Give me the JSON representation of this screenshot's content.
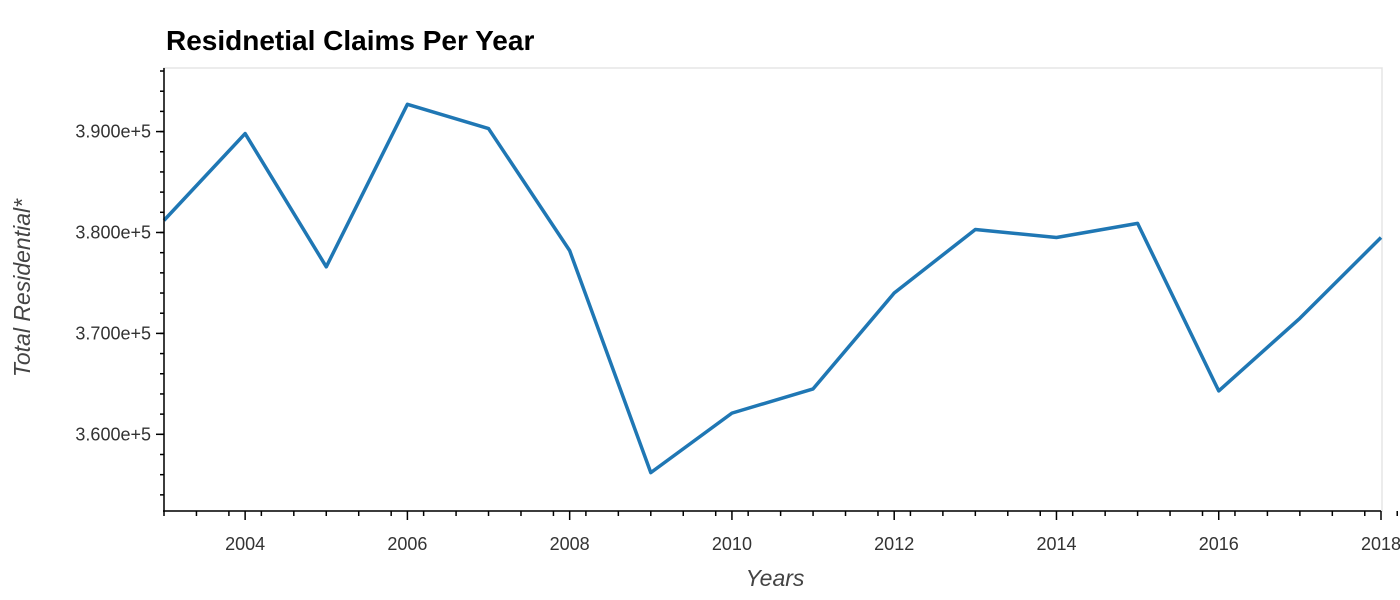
{
  "chart_data": {
    "type": "line",
    "title": "Residnetial Claims Per Year",
    "xlabel": "Years",
    "ylabel": "Total Residential*",
    "xlim": [
      2003,
      2018
    ],
    "ylim": [
      352400,
      396300
    ],
    "x_ticks": [
      2004,
      2006,
      2008,
      2010,
      2012,
      2014,
      2016,
      2018
    ],
    "x_tick_labels": [
      "2004",
      "2006",
      "2008",
      "2010",
      "2012",
      "2014",
      "2016",
      "2018"
    ],
    "y_ticks": [
      360000,
      370000,
      380000,
      390000
    ],
    "y_tick_labels": [
      "3.600e+5",
      "3.700e+5",
      "3.800e+5",
      "3.900e+5"
    ],
    "grid": false,
    "color": "#1f77b4",
    "x": [
      2003,
      2004,
      2005,
      2006,
      2007,
      2008,
      2009,
      2010,
      2011,
      2012,
      2013,
      2014,
      2015,
      2016,
      2017,
      2018
    ],
    "values": [
      381200,
      389800,
      376600,
      392700,
      390300,
      378200,
      356200,
      362100,
      364500,
      374000,
      380300,
      379500,
      380900,
      364300,
      371500,
      379500
    ]
  }
}
